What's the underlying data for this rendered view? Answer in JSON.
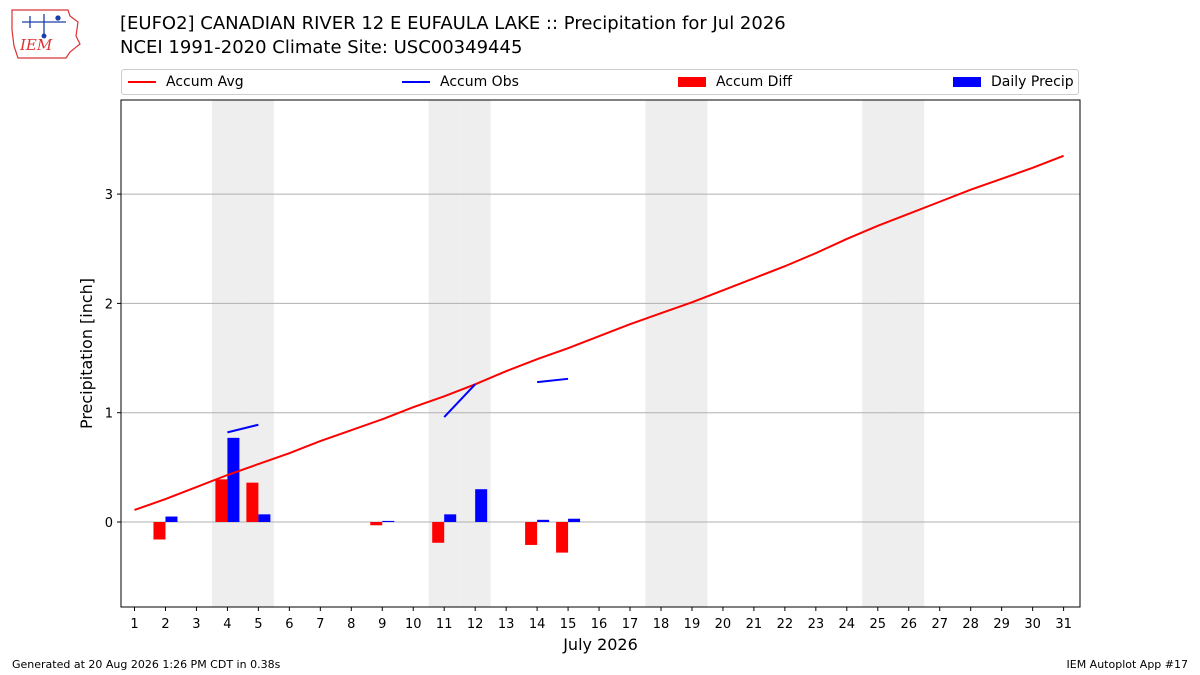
{
  "header": {
    "title_line1": "[EUFO2] CANADIAN RIVER 12 E EUFAULA LAKE :: Precipitation for Jul 2026",
    "title_line2": "NCEI 1991-2020 Climate Site: USC00349445"
  },
  "logo": {
    "text": "IEM",
    "icon": "iowa-state-weather-logo"
  },
  "footer": {
    "generated": "Generated at 20 Aug 2026 1:26 PM CDT in 0.38s",
    "app": "IEM Autoplot App #17"
  },
  "colors": {
    "avg": "#ff0000",
    "obs": "#0000ff",
    "diff": "#ff0000",
    "daily": "#0000ff",
    "weekend": "#eeeeee",
    "grid": "#b0b0b0"
  },
  "chart_data": {
    "type": "bar",
    "xlabel": "July 2026",
    "ylabel": "Precipitation [inch]",
    "xlim": [
      0.5,
      31.5
    ],
    "ylim": [
      -0.78,
      3.85
    ],
    "yticks": [
      0,
      1,
      2,
      3
    ],
    "grid": "y",
    "legend_placement": "top",
    "legend": [
      "Accum Avg",
      "Accum Obs",
      "Accum Diff",
      "Daily Precip"
    ],
    "days": [
      1,
      2,
      3,
      4,
      5,
      6,
      7,
      8,
      9,
      10,
      11,
      12,
      13,
      14,
      15,
      16,
      17,
      18,
      19,
      20,
      21,
      22,
      23,
      24,
      25,
      26,
      27,
      28,
      29,
      30,
      31
    ],
    "weekend_days": [
      4,
      5,
      11,
      12,
      18,
      19,
      25,
      26
    ],
    "series": [
      {
        "name": "Accum Avg",
        "kind": "line",
        "values": [
          0.11,
          0.21,
          0.32,
          0.43,
          0.53,
          0.63,
          0.74,
          0.84,
          0.94,
          1.05,
          1.15,
          1.26,
          1.38,
          1.49,
          1.59,
          1.7,
          1.81,
          1.91,
          2.01,
          2.12,
          2.23,
          2.34,
          2.46,
          2.59,
          2.71,
          2.82,
          2.93,
          3.04,
          3.14,
          3.24,
          3.35
        ]
      },
      {
        "name": "Accum Obs",
        "kind": "line",
        "segments": [
          {
            "x": [
              4,
              5
            ],
            "y": [
              0.82,
              0.89
            ]
          },
          {
            "x": [
              11,
              12
            ],
            "y": [
              0.96,
              1.26
            ]
          },
          {
            "x": [
              14,
              15
            ],
            "y": [
              1.28,
              1.31
            ]
          }
        ]
      },
      {
        "name": "Accum Diff",
        "kind": "bar",
        "points": [
          {
            "x": 2,
            "y": -0.16
          },
          {
            "x": 4,
            "y": 0.39
          },
          {
            "x": 5,
            "y": 0.36
          },
          {
            "x": 9,
            "y": -0.03
          },
          {
            "x": 11,
            "y": -0.19
          },
          {
            "x": 14,
            "y": -0.21
          },
          {
            "x": 15,
            "y": -0.28
          }
        ]
      },
      {
        "name": "Daily Precip",
        "kind": "bar",
        "points": [
          {
            "x": 2,
            "y": 0.05
          },
          {
            "x": 4,
            "y": 0.77
          },
          {
            "x": 5,
            "y": 0.07
          },
          {
            "x": 9,
            "y": 0.01
          },
          {
            "x": 11,
            "y": 0.07
          },
          {
            "x": 12,
            "y": 0.3
          },
          {
            "x": 14,
            "y": 0.02
          },
          {
            "x": 15,
            "y": 0.03
          }
        ]
      }
    ]
  }
}
